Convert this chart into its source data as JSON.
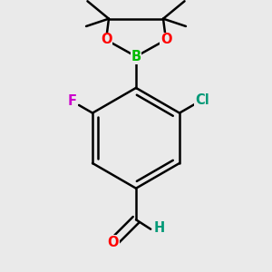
{
  "bg_color": "#eaeaea",
  "bond_color": "#000000",
  "bond_width": 1.8,
  "atom_labels": {
    "O_left": {
      "text": "O",
      "color": "#ff0000",
      "fontsize": 10.5,
      "fontweight": "bold"
    },
    "O_right": {
      "text": "O",
      "color": "#ff0000",
      "fontsize": 10.5,
      "fontweight": "bold"
    },
    "B": {
      "text": "B",
      "color": "#00bb00",
      "fontsize": 10.5,
      "fontweight": "bold"
    },
    "F": {
      "text": "F",
      "color": "#cc00cc",
      "fontsize": 10.5,
      "fontweight": "bold"
    },
    "Cl": {
      "text": "Cl",
      "color": "#009977",
      "fontsize": 10.5,
      "fontweight": "bold"
    },
    "O_ald": {
      "text": "O",
      "color": "#ff0000",
      "fontsize": 10.5,
      "fontweight": "bold"
    },
    "H_ald": {
      "text": "H",
      "color": "#009977",
      "fontsize": 10.5,
      "fontweight": "bold"
    }
  },
  "figsize": [
    3.0,
    3.0
  ],
  "dpi": 100
}
